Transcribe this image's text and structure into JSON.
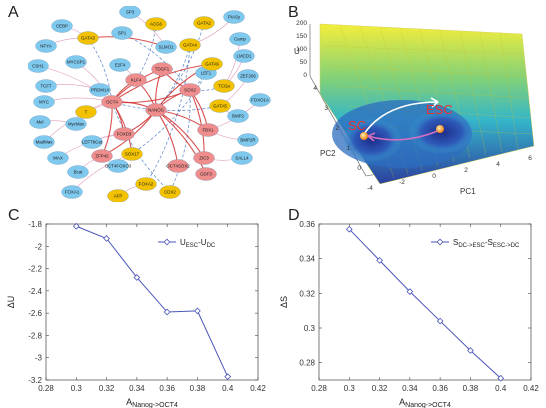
{
  "panels": {
    "A": {
      "letter": "A",
      "nodes_blue": [
        "CEBP",
        "SP3",
        "PIASy",
        "NFYA",
        "SP1",
        "Camp",
        "CSH1",
        "SLMO1",
        "MYCSP1",
        "E2F4",
        "LMCD1",
        "TCF7",
        "LEF1",
        "ZEF206",
        "PRDM14",
        "FOXO1A",
        "MYC",
        "BMP2",
        "Mel",
        "MycMax",
        "MadMax",
        "LEFTbCat",
        "BMP2R",
        "SALL4",
        "MAX",
        "Bcat",
        "OCT4FOXO3",
        "FOXA1"
      ],
      "nodes_gold": [
        "ACG6",
        "GATA3",
        "GATA2",
        "GATA4",
        "GATA6",
        "TCGa",
        "GATA5",
        "T",
        "SOX17",
        "AFP",
        "FOXA2",
        "CDX2"
      ],
      "nodes_red": [
        "KLF4",
        "OCT4",
        "TDGF1",
        "NANOG",
        "SOX2",
        "FOXD3",
        "ZFP42",
        "FBX1",
        "ZIC3",
        "OCT4SOX2",
        "GDF3"
      ],
      "colors": {
        "blue": "#7fc8ee",
        "gold": "#f2c200",
        "red": "#ef8d8d",
        "edge_red": "#d23030",
        "edge_blue": "#3a6fc0",
        "edge_pink": "#d88ab0"
      }
    },
    "B": {
      "letter": "B",
      "labels": {
        "sc": "SC",
        "esc": "ESC",
        "pc1": "PC1",
        "pc2": "PC2",
        "u": "U"
      },
      "ticks_u": [
        "0",
        "50",
        "100",
        "150",
        "200"
      ],
      "ticks_pc1": [
        "-4",
        "-2",
        "0",
        "2",
        "4",
        "6"
      ],
      "ticks_pc2": [
        "0",
        "1",
        "2",
        "3",
        "4"
      ]
    }
  },
  "chart_data": [
    {
      "panel": "C",
      "type": "line",
      "xlabel": "A",
      "xlabel_sub": "Nanog->OCT4",
      "ylabel": "ΔU",
      "x": [
        0.3,
        0.32,
        0.34,
        0.36,
        0.38,
        0.4
      ],
      "series": [
        {
          "name": "U",
          "name_sub1": "ESC",
          "name_mid": "-U",
          "name_sub2": "DC",
          "values": [
            -1.82,
            -1.93,
            -2.28,
            -2.59,
            -2.58,
            -3.17
          ]
        }
      ],
      "xlim": [
        0.28,
        0.42
      ],
      "ylim": [
        -3.2,
        -1.8
      ],
      "xticks": [
        "0.28",
        "0.3",
        "0.32",
        "0.34",
        "0.36",
        "0.38",
        "0.4",
        "0.42"
      ],
      "yticks": [
        "-3.2",
        "-3",
        "-2.8",
        "-2.6",
        "-2.4",
        "-2.2",
        "-2",
        "-1.8"
      ],
      "legend": "top-right",
      "color": "#4a55b8"
    },
    {
      "panel": "D",
      "type": "line",
      "xlabel": "A",
      "xlabel_sub": "Nanog->OCT4",
      "ylabel": "ΔS",
      "x": [
        0.3,
        0.32,
        0.34,
        0.36,
        0.38,
        0.4
      ],
      "series": [
        {
          "name": "S",
          "name_sub1": "DC->ESC",
          "name_mid": "-S",
          "name_sub2": "ESC->DC",
          "values": [
            0.357,
            0.339,
            0.321,
            0.304,
            0.287,
            0.271
          ]
        }
      ],
      "xlim": [
        0.28,
        0.42
      ],
      "ylim": [
        0.27,
        0.36
      ],
      "xticks": [
        "0.28",
        "0.3",
        "0.32",
        "0.34",
        "0.36",
        "0.38",
        "0.4",
        "0.42"
      ],
      "yticks": [
        "0.28",
        "0.3",
        "0.32",
        "0.34",
        "0.36"
      ],
      "legend": "top-right",
      "color": "#4a55b8"
    }
  ],
  "letters": {
    "c": "C",
    "d": "D"
  }
}
